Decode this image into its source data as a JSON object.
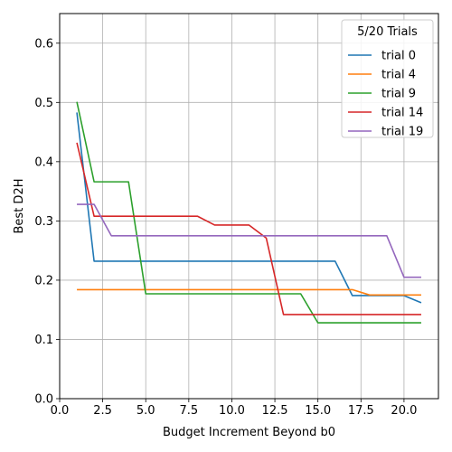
{
  "chart_data": {
    "type": "line",
    "title": "",
    "xlabel": "Budget Increment Beyond b0",
    "ylabel": "Best D2H",
    "xlim": [
      0,
      22
    ],
    "ylim": [
      0,
      0.65
    ],
    "xticks": [
      0.0,
      2.5,
      5.0,
      7.5,
      10.0,
      12.5,
      15.0,
      17.5,
      20.0
    ],
    "xtick_labels": [
      "0.0",
      "2.5",
      "5.0",
      "7.5",
      "10.0",
      "12.5",
      "15.0",
      "17.5",
      "20.0"
    ],
    "yticks": [
      0.0,
      0.1,
      0.2,
      0.3,
      0.4,
      0.5,
      0.6
    ],
    "ytick_labels": [
      "0.0",
      "0.1",
      "0.2",
      "0.3",
      "0.4",
      "0.5",
      "0.6"
    ],
    "grid": true,
    "legend": {
      "title": "5/20 Trials",
      "position": "upper-right"
    },
    "series": [
      {
        "name": "trial 0",
        "color": "#1f77b4",
        "x": [
          1,
          2,
          3,
          4,
          5,
          6,
          7,
          8,
          9,
          10,
          11,
          12,
          13,
          14,
          15,
          16,
          17,
          18,
          19,
          20,
          21
        ],
        "y": [
          0.483,
          0.232,
          0.232,
          0.232,
          0.232,
          0.232,
          0.232,
          0.232,
          0.232,
          0.232,
          0.232,
          0.232,
          0.232,
          0.232,
          0.232,
          0.232,
          0.174,
          0.174,
          0.174,
          0.174,
          0.162
        ]
      },
      {
        "name": "trial 4",
        "color": "#ff7f0e",
        "x": [
          1,
          2,
          3,
          4,
          5,
          6,
          7,
          8,
          9,
          10,
          11,
          12,
          13,
          14,
          15,
          16,
          17,
          18,
          19,
          20,
          21
        ],
        "y": [
          0.184,
          0.184,
          0.184,
          0.184,
          0.184,
          0.184,
          0.184,
          0.184,
          0.184,
          0.184,
          0.184,
          0.184,
          0.184,
          0.184,
          0.184,
          0.184,
          0.184,
          0.175,
          0.175,
          0.175,
          0.175
        ]
      },
      {
        "name": "trial 9",
        "color": "#2ca02c",
        "x": [
          1,
          2,
          3,
          4,
          5,
          6,
          7,
          8,
          9,
          10,
          11,
          12,
          13,
          14,
          15,
          16,
          17,
          18,
          19,
          20,
          21
        ],
        "y": [
          0.501,
          0.366,
          0.366,
          0.366,
          0.177,
          0.177,
          0.177,
          0.177,
          0.177,
          0.177,
          0.177,
          0.177,
          0.177,
          0.177,
          0.128,
          0.128,
          0.128,
          0.128,
          0.128,
          0.128,
          0.128
        ]
      },
      {
        "name": "trial 14",
        "color": "#d62728",
        "x": [
          1,
          2,
          3,
          4,
          5,
          6,
          7,
          8,
          9,
          10,
          11,
          12,
          13,
          14,
          15,
          16,
          17,
          18,
          19,
          20,
          21
        ],
        "y": [
          0.432,
          0.308,
          0.308,
          0.308,
          0.308,
          0.308,
          0.308,
          0.308,
          0.293,
          0.293,
          0.293,
          0.271,
          0.142,
          0.142,
          0.142,
          0.142,
          0.142,
          0.142,
          0.142,
          0.142,
          0.142
        ]
      },
      {
        "name": "trial 19",
        "color": "#9467bd",
        "x": [
          1,
          2,
          3,
          4,
          5,
          6,
          7,
          8,
          9,
          10,
          11,
          12,
          13,
          14,
          15,
          16,
          17,
          18,
          19,
          20,
          21
        ],
        "y": [
          0.328,
          0.328,
          0.275,
          0.275,
          0.275,
          0.275,
          0.275,
          0.275,
          0.275,
          0.275,
          0.275,
          0.275,
          0.275,
          0.275,
          0.275,
          0.275,
          0.275,
          0.275,
          0.275,
          0.205,
          0.205
        ]
      }
    ]
  }
}
